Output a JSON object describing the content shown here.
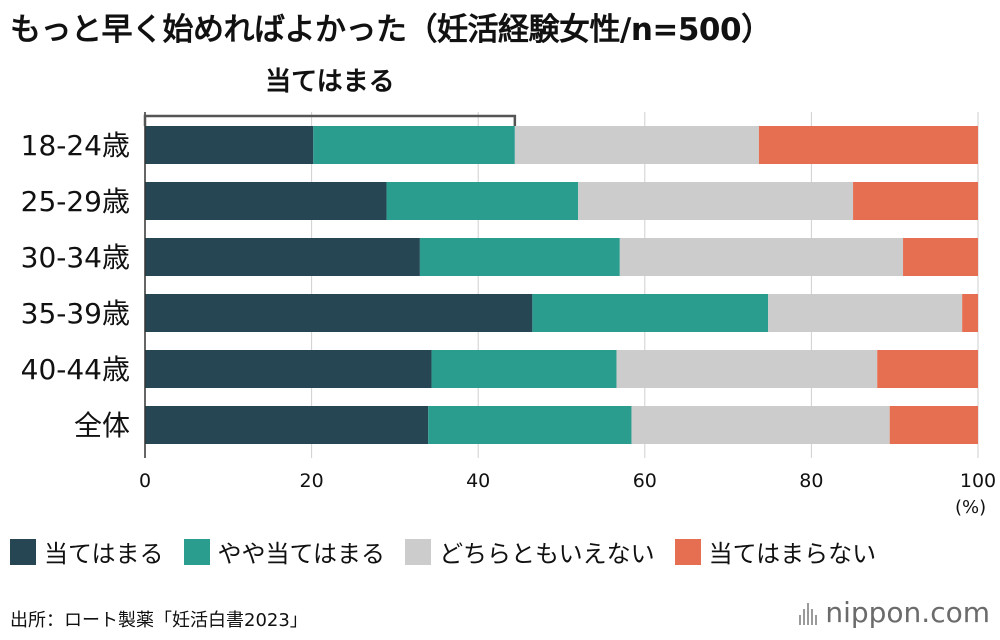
{
  "title": "もっと早く始めればよかった（妊活経験女性/n=500）",
  "colors": {
    "agree": "#264653",
    "somewhat_agree": "#2a9d8f",
    "neutral": "#cccccc",
    "disagree": "#e76f51",
    "grid": "#cfcfcf",
    "bracket": "#555555"
  },
  "chart_data": {
    "type": "bar",
    "orientation": "horizontal",
    "stacked": true,
    "categories": [
      "18-24歳",
      "25-29歳",
      "30-34歳",
      "35-39歳",
      "40-44歳",
      "全体"
    ],
    "series": [
      {
        "name": "当てはまる",
        "color_key": "agree",
        "values": [
          20.2,
          29.0,
          33.0,
          46.5,
          34.4,
          34.0
        ]
      },
      {
        "name": "やや当てはまる",
        "color_key": "somewhat_agree",
        "values": [
          24.2,
          23.0,
          24.0,
          28.3,
          22.2,
          24.4
        ]
      },
      {
        "name": "どちらともいえない",
        "color_key": "neutral",
        "values": [
          29.3,
          33.0,
          34.0,
          23.3,
          31.3,
          31.0
        ]
      },
      {
        "name": "当てはまらない",
        "color_key": "disagree",
        "values": [
          26.3,
          15.0,
          9.0,
          1.9,
          12.1,
          10.6
        ]
      }
    ],
    "xlim": [
      0,
      100
    ],
    "xticks": [
      0,
      20,
      40,
      60,
      80,
      100
    ],
    "xunit": "(%)",
    "bracket_label": "当てはまる",
    "bracket_range": [
      0,
      44.4
    ],
    "grid": true
  },
  "legend": [
    "当てはまる",
    "やや当てはまる",
    "どちらともいえない",
    "当てはまらない"
  ],
  "source": "出所：ロート製薬「妊活白書2023」",
  "logo": "nippon.com"
}
